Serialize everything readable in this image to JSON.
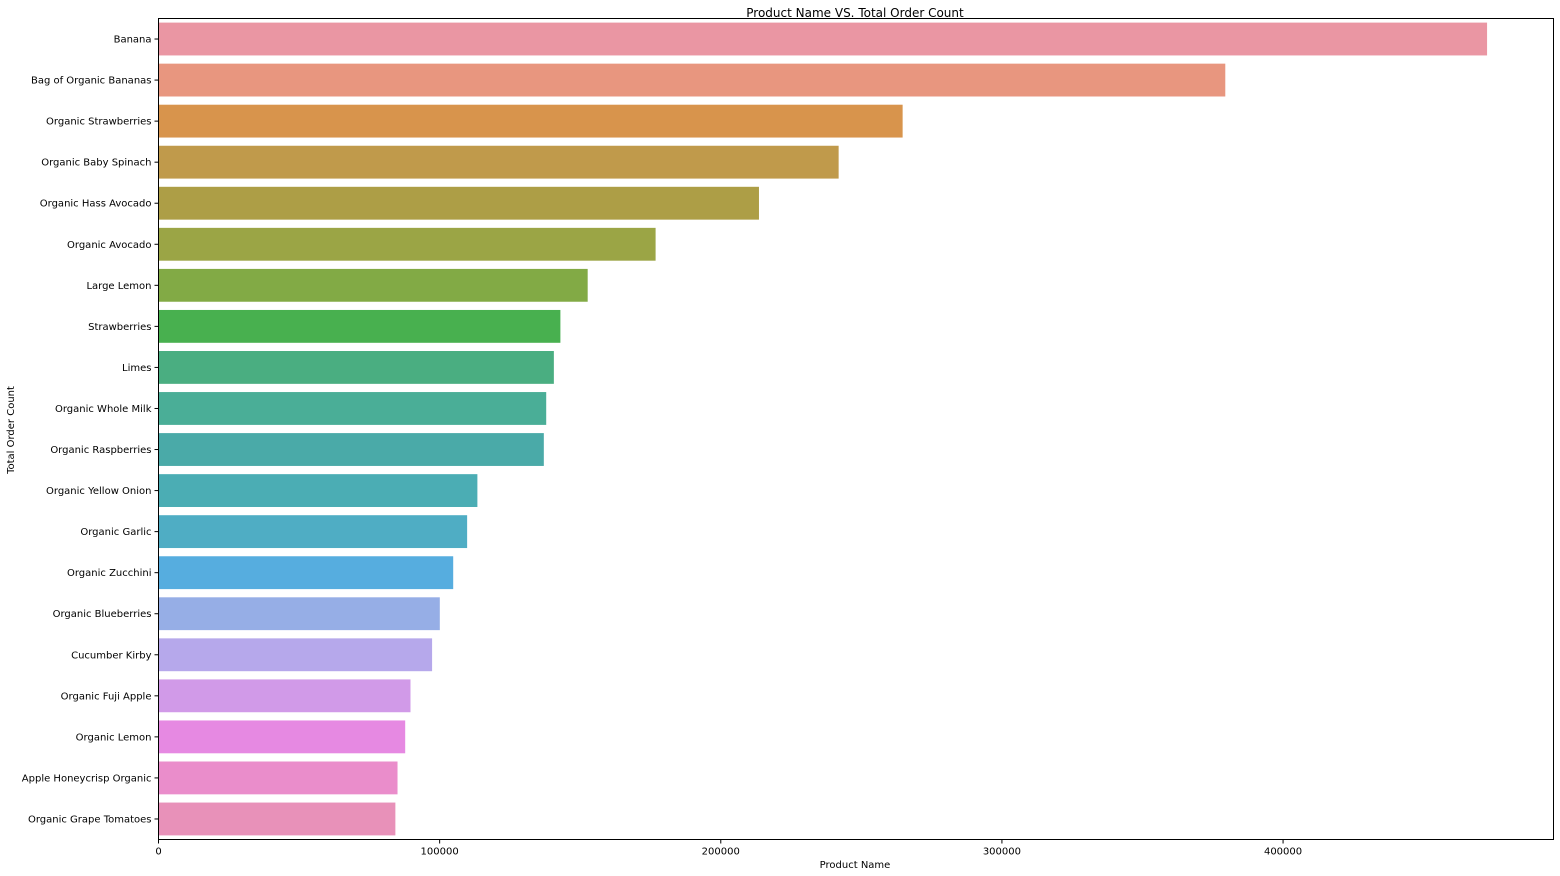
{
  "chart_data": {
    "type": "bar",
    "orientation": "horizontal",
    "title": "Product Name VS. Total Order Count",
    "xlabel": "Product Name",
    "ylabel": "Total Order Count",
    "xlim": [
      0,
      496193
    ],
    "xticks": [
      0,
      100000,
      200000,
      300000,
      400000
    ],
    "xtick_labels": [
      "0",
      "100000",
      "200000",
      "300000",
      "400000"
    ],
    "grid": false,
    "categories": [
      "Banana",
      "Bag of Organic Bananas",
      "Organic Strawberries",
      "Organic Baby Spinach",
      "Organic Hass Avocado",
      "Organic Avocado",
      "Large Lemon",
      "Strawberries",
      "Limes",
      "Organic Whole Milk",
      "Organic Raspberries",
      "Organic Yellow Onion",
      "Organic Garlic",
      "Organic Zucchini",
      "Organic Blueberries",
      "Cucumber Kirby",
      "Organic Fuji Apple",
      "Organic Lemon",
      "Apple Honeycrisp Organic",
      "Organic Grape Tomatoes"
    ],
    "values": [
      472565,
      379450,
      264683,
      241921,
      213584,
      176815,
      152657,
      142951,
      140627,
      137905,
      137057,
      113426,
      109778,
      104823,
      100060,
      97315,
      89632,
      87746,
      85020,
      84255
    ],
    "colors": [
      "#ea96a3",
      "#e8967f",
      "#d8944c",
      "#c09a4b",
      "#ad9e46",
      "#9ba545",
      "#82aa45",
      "#48b04f",
      "#4aae81",
      "#4aae97",
      "#4aaaa8",
      "#4badb4",
      "#4fadc4",
      "#56addf",
      "#96aee6",
      "#b6a8eb",
      "#d19ae8",
      "#e689e2",
      "#ea8dcb",
      "#e891b9"
    ]
  }
}
